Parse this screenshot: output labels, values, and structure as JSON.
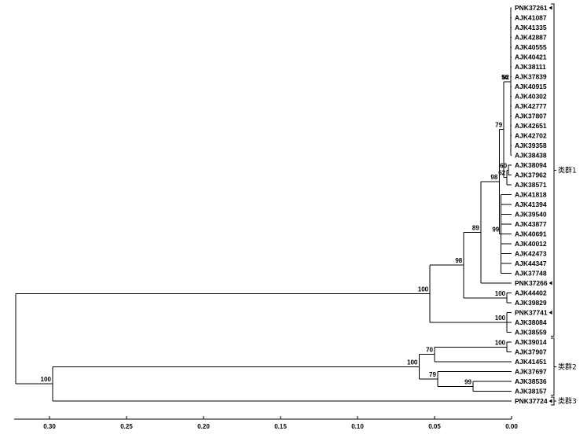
{
  "leaves": [
    "PNK37261",
    "AJK41087",
    "AJK41335",
    "AJK42887",
    "AJK40555",
    "AJK40421",
    "AJK38111",
    "AJK37839",
    "AJK40915",
    "AJK40302",
    "AJK42777",
    "AJK37807",
    "AJK42651",
    "AJK42702",
    "AJK39358",
    "AJK38438",
    "AJK38094",
    "AJK37962",
    "AJK38571",
    "AJK41818",
    "AJK41394",
    "AJK39540",
    "AJK43877",
    "AJK40691",
    "AJK40012",
    "AJK42473",
    "AJK44347",
    "AJK37748",
    "PNK37266",
    "AJK44402",
    "AJK39829",
    "PNK37741",
    "AJK38084",
    "AJK38559",
    "AJK39014",
    "AJK37907",
    "AJK41451",
    "AJK37697",
    "AJK38536",
    "AJK38157",
    "PNK37724"
  ],
  "marked_leaves": [
    "PNK37261",
    "PNK37266",
    "PNK37741",
    "PNK37724"
  ],
  "clusters": [
    {
      "label": "类群1",
      "from": 0,
      "to": 33
    },
    {
      "label": "类群2",
      "from": 34,
      "to": 39
    },
    {
      "label": "类群3",
      "from": 40,
      "to": 40
    }
  ],
  "axis": {
    "ticks": [
      "0.30",
      "0.25",
      "0.20",
      "0.15",
      "0.10",
      "0.05",
      "0.00"
    ],
    "min": 0,
    "max": 0.3,
    "reversed": true
  },
  "tree": [
    {
      "id": "N62",
      "d": 0.0005,
      "kids": [
        0,
        1,
        2,
        3,
        4,
        5,
        6,
        7,
        8,
        9,
        10,
        11,
        12,
        13,
        14,
        15
      ],
      "boot": "62"
    },
    {
      "id": "N56",
      "d": 0.001,
      "kids": [
        "N62"
      ],
      "boot": "56"
    },
    {
      "id": "N60",
      "d": 0.002,
      "kids": [
        16,
        17
      ],
      "boot": "60"
    },
    {
      "id": "N62b",
      "d": 0.003,
      "kids": [
        "N60",
        18
      ],
      "boot": "62"
    },
    {
      "id": "N79",
      "d": 0.005,
      "kids": [
        "N56",
        "N62b"
      ],
      "boot": "79"
    },
    {
      "id": "N99",
      "d": 0.007,
      "kids": [
        19,
        20,
        21,
        22,
        23,
        24,
        25,
        26,
        27
      ],
      "boot": "99"
    },
    {
      "id": "N98a",
      "d": 0.008,
      "kids": [
        "N79",
        "N99"
      ],
      "boot": "98"
    },
    {
      "id": "N89",
      "d": 0.02,
      "kids": [
        "N98a",
        28
      ],
      "boot": "89"
    },
    {
      "id": "N100a",
      "d": 0.003,
      "kids": [
        29,
        30
      ],
      "boot": "100"
    },
    {
      "id": "N98b",
      "d": 0.031,
      "kids": [
        "N89",
        "N100a"
      ],
      "boot": "98"
    },
    {
      "id": "N100b",
      "d": 0.003,
      "kids": [
        31,
        32,
        33
      ],
      "boot": "100"
    },
    {
      "id": "N100c",
      "d": 0.053,
      "kids": [
        "N98b",
        "N100b"
      ],
      "boot": "100"
    },
    {
      "id": "N100d",
      "d": 0.003,
      "kids": [
        34,
        35
      ],
      "boot": "100"
    },
    {
      "id": "N70",
      "d": 0.05,
      "kids": [
        "N100d",
        36
      ],
      "boot": "70"
    },
    {
      "id": "N99b",
      "d": 0.025,
      "kids": [
        38,
        39
      ],
      "boot": "99"
    },
    {
      "id": "N79b",
      "d": 0.048,
      "kids": [
        37,
        "N99b"
      ],
      "boot": "79"
    },
    {
      "id": "N100e",
      "d": 0.06,
      "kids": [
        "N70",
        "N79b"
      ],
      "boot": "100"
    },
    {
      "id": "N100f",
      "d": 0.298,
      "kids": [
        "N100e",
        40
      ],
      "boot": "100"
    },
    {
      "id": "ROOT",
      "d": 0.322,
      "kids": [
        "N100c",
        "N100f"
      ],
      "boot": ""
    }
  ]
}
